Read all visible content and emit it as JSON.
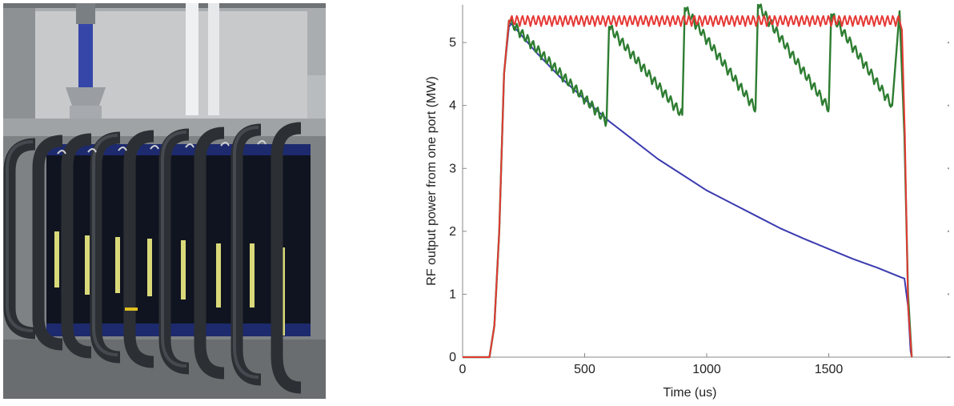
{
  "photo": {
    "icon": "klystron-modulator-photo"
  },
  "chart_data": {
    "type": "line",
    "title": "",
    "xlabel": "Time (us)",
    "ylabel": "RF output power from one port (MW)",
    "xlim": [
      0,
      2000
    ],
    "ylim": [
      0,
      5.6
    ],
    "xticks": [
      0,
      500,
      1000,
      1500
    ],
    "yticks": [
      0,
      1,
      2,
      3,
      4,
      5
    ],
    "grid": false,
    "legend": "none",
    "series": [
      {
        "color": "#3b3bb0",
        "x": [
          0,
          110,
          130,
          150,
          170,
          190,
          200,
          300,
          400,
          500,
          600,
          700,
          800,
          900,
          1000,
          1100,
          1200,
          1300,
          1400,
          1500,
          1600,
          1700,
          1795,
          1810,
          1825,
          1835,
          1840
        ],
        "y": [
          0,
          0,
          0.5,
          2.0,
          4.5,
          5.25,
          5.3,
          4.85,
          4.45,
          4.1,
          3.75,
          3.45,
          3.15,
          2.9,
          2.65,
          2.45,
          2.25,
          2.05,
          1.88,
          1.72,
          1.56,
          1.42,
          1.27,
          1.25,
          0.8,
          0.1,
          0
        ]
      },
      {
        "color": "#2e7d32",
        "x": [
          0,
          110,
          130,
          150,
          170,
          190,
          590,
          600,
          900,
          910,
          1200,
          1210,
          1500,
          1510,
          1760,
          1790,
          1810,
          1825,
          1840
        ],
        "y": [
          0,
          0,
          0.5,
          2.0,
          4.5,
          5.35,
          3.75,
          5.25,
          3.85,
          5.55,
          3.95,
          5.6,
          3.95,
          5.45,
          4.0,
          5.5,
          3.5,
          1.0,
          0
        ]
      },
      {
        "color": "#e53935",
        "x": [
          0,
          110,
          130,
          150,
          170,
          190,
          1790,
          1800,
          1812,
          1825,
          1840
        ],
        "y": [
          0,
          0,
          0.5,
          2.0,
          4.5,
          5.35,
          5.35,
          5.2,
          3.5,
          0.8,
          0
        ]
      }
    ]
  }
}
